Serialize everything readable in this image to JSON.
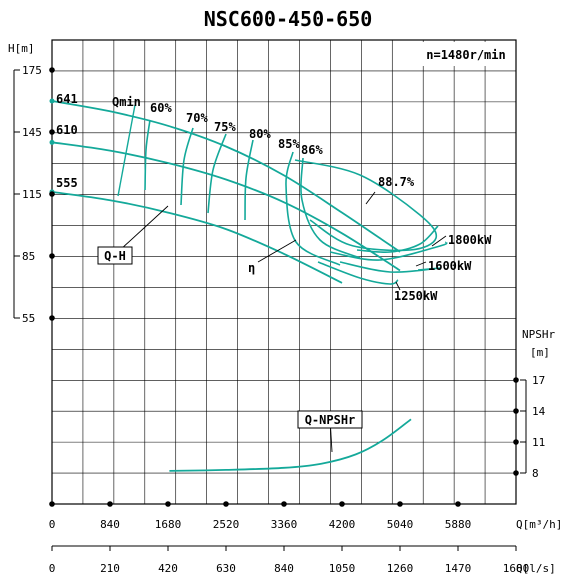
{
  "chart_data": {
    "type": "line",
    "title": "NSC600-450-650",
    "speed_label": "n=1480r/min",
    "x_axis": {
      "unit_label": "Q[m³/h]",
      "ticks": [
        "0",
        "840",
        "1680",
        "2520",
        "3360",
        "4200",
        "5040",
        "5880"
      ],
      "range": [
        0,
        6720
      ]
    },
    "x2_axis": {
      "unit_label": "Q[l/s]",
      "ticks": [
        "0",
        "210",
        "420",
        "630",
        "840",
        "1050",
        "1260",
        "1470",
        "1680"
      ],
      "range": [
        0,
        1680
      ]
    },
    "y_axis": {
      "unit_label": "H[m]",
      "ticks": [
        "175",
        "145",
        "115",
        "85",
        "55"
      ],
      "range": [
        55,
        175
      ]
    },
    "npsh_axis": {
      "unit_label": "NPSHr [m]",
      "ticks": [
        "17",
        "14",
        "11",
        "8"
      ],
      "range": [
        8,
        17
      ]
    },
    "labels": {
      "qh": "Q-H",
      "eta": "η",
      "qmin": "Qmin",
      "npsh": "Q-NPSHr",
      "d641": "641",
      "d610": "610",
      "d555": "555"
    },
    "series": [
      {
        "name": "641",
        "x": [
          0,
          840,
          1680,
          2520,
          3360,
          4200,
          5040
        ],
        "y": [
          160,
          155,
          148,
          138,
          124,
          106,
          87
        ]
      },
      {
        "name": "610",
        "x": [
          0,
          840,
          1680,
          2520,
          3360,
          4200,
          5040
        ],
        "y": [
          140,
          136,
          130,
          122,
          111,
          96,
          78
        ]
      },
      {
        "name": "555",
        "x": [
          0,
          840,
          1680,
          2520,
          3360,
          4200
        ],
        "y": [
          116,
          112,
          106,
          98,
          86,
          72
        ]
      },
      {
        "name": "Q-NPSHr",
        "x": [
          1700,
          2520,
          3360,
          3900,
          4400,
          4800,
          5200
        ],
        "y": [
          8.2,
          8.3,
          8.5,
          8.9,
          9.8,
          11.2,
          13.2
        ]
      }
    ],
    "efficiency_labels": [
      "60%",
      "70%",
      "75%",
      "80%",
      "85%",
      "86%",
      "88.7%"
    ],
    "power_labels": [
      "1800kW",
      "1600kW",
      "1250kW"
    ],
    "colors": {
      "curve": "#14a99a",
      "grid": "#000000",
      "bg": "#ffffff"
    }
  }
}
